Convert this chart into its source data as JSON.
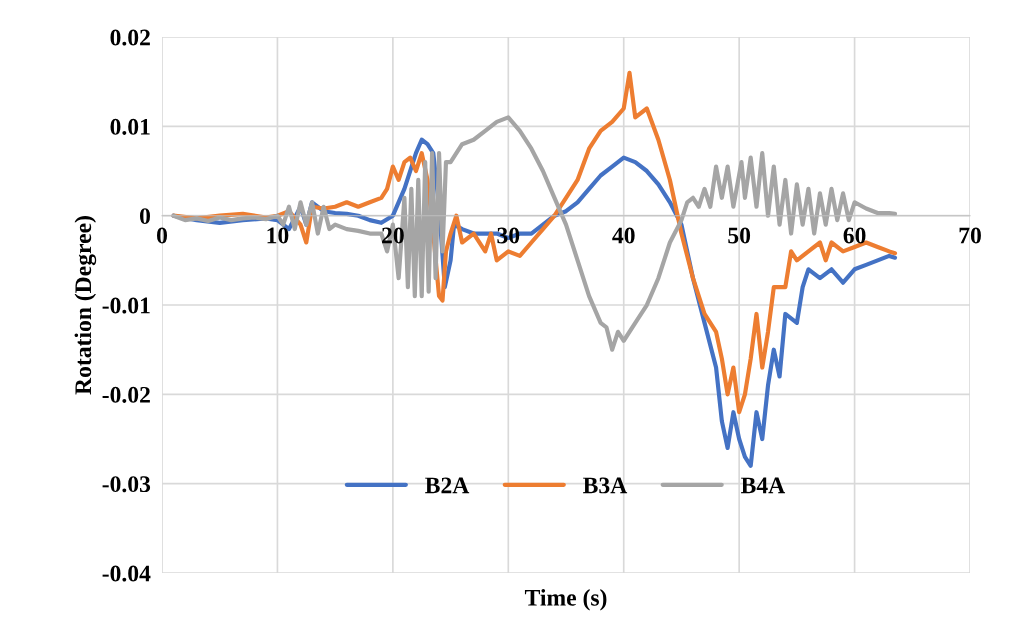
{
  "chart_data": {
    "type": "line",
    "xlabel": "Time (s)",
    "ylabel": "Rotation (Degree)",
    "xlim": [
      0,
      70
    ],
    "xticks": [
      0,
      10,
      20,
      30,
      40,
      50,
      60,
      70
    ],
    "ylim": [
      -0.04,
      0.02
    ],
    "yticks": [
      -0.04,
      -0.03,
      -0.02,
      -0.01,
      0,
      0.01,
      0.02
    ],
    "grid": true,
    "legend": "bottom",
    "line_style": "solid",
    "marker": "none",
    "series": [
      {
        "name": "B2A",
        "color": "#4472c4",
        "x": [
          1,
          3,
          5,
          7,
          9,
          10,
          11,
          12,
          12.5,
          13,
          14,
          15,
          16,
          17,
          18,
          19,
          20,
          21,
          22,
          22.5,
          23,
          23.5,
          24,
          24.5,
          25,
          25.3,
          26,
          27,
          28,
          29,
          30,
          31,
          32,
          33,
          34,
          35,
          36,
          37,
          38,
          39,
          40,
          41,
          42,
          43,
          44,
          45,
          46,
          47,
          48,
          48.5,
          49,
          49.5,
          50,
          50.5,
          51,
          51.5,
          52,
          52.5,
          53,
          53.5,
          54,
          55,
          55.5,
          56,
          57,
          58,
          59,
          60,
          61,
          62,
          63,
          63.5
        ],
        "values": [
          0,
          -0.0005,
          -0.0008,
          -0.0005,
          -0.0003,
          -0.0005,
          -0.0015,
          0.001,
          -0.001,
          0.0015,
          0.0005,
          0.0003,
          0.0002,
          0,
          -0.0005,
          -0.0008,
          0,
          0.003,
          0.007,
          0.0085,
          0.008,
          0.007,
          0.001,
          -0.008,
          -0.005,
          -0.001,
          -0.0015,
          -0.002,
          -0.002,
          -0.002,
          -0.0025,
          -0.002,
          -0.002,
          -0.001,
          0,
          0.0005,
          0.0015,
          0.003,
          0.0045,
          0.0055,
          0.0065,
          0.006,
          0.005,
          0.0035,
          0.0015,
          -0.001,
          -0.007,
          -0.012,
          -0.017,
          -0.023,
          -0.026,
          -0.022,
          -0.025,
          -0.027,
          -0.028,
          -0.022,
          -0.025,
          -0.019,
          -0.015,
          -0.018,
          -0.011,
          -0.012,
          -0.008,
          -0.006,
          -0.007,
          -0.006,
          -0.0075,
          -0.006,
          -0.0055,
          -0.005,
          -0.0045,
          -0.0047
        ]
      },
      {
        "name": "B3A",
        "color": "#ed7d31",
        "x": [
          1,
          3,
          5,
          7,
          9,
          10,
          11,
          12,
          12.5,
          13,
          14,
          15,
          16,
          17,
          18,
          19,
          19.5,
          20,
          20.5,
          21,
          21.5,
          22,
          22.5,
          23,
          23.5,
          24,
          24.3,
          24.6,
          25,
          25.5,
          26,
          27,
          28,
          28.5,
          29,
          30,
          31,
          32,
          33,
          34,
          35,
          36,
          37,
          38,
          39,
          40,
          40.5,
          41,
          42,
          43,
          44,
          45,
          46,
          47,
          48,
          48.5,
          49,
          49.5,
          50,
          50.5,
          51,
          51.5,
          52,
          52.5,
          53,
          54,
          54.5,
          55,
          56,
          57,
          57.5,
          58,
          59,
          60,
          61,
          62,
          63,
          63.5
        ],
        "values": [
          0,
          -0.0003,
          0,
          0.0002,
          -0.0002,
          0,
          0.0005,
          -0.001,
          -0.003,
          0.001,
          0.0008,
          0.001,
          0.0015,
          0.001,
          0.0015,
          0.002,
          0.003,
          0.0055,
          0.004,
          0.006,
          0.0065,
          0.005,
          0.007,
          0.004,
          -0.002,
          -0.009,
          -0.0095,
          -0.004,
          -0.002,
          0,
          -0.003,
          -0.002,
          -0.004,
          -0.002,
          -0.005,
          -0.004,
          -0.0045,
          -0.003,
          -0.0015,
          0,
          0.002,
          0.004,
          0.0075,
          0.0095,
          0.0105,
          0.012,
          0.016,
          0.011,
          0.012,
          0.0085,
          0.004,
          -0.002,
          -0.007,
          -0.011,
          -0.013,
          -0.016,
          -0.02,
          -0.017,
          -0.022,
          -0.02,
          -0.016,
          -0.011,
          -0.017,
          -0.013,
          -0.008,
          -0.008,
          -0.004,
          -0.005,
          -0.004,
          -0.003,
          -0.005,
          -0.003,
          -0.004,
          -0.0035,
          -0.003,
          -0.0035,
          -0.004,
          -0.0042
        ]
      },
      {
        "name": "B4A",
        "color": "#a5a5a5",
        "x": [
          1,
          2,
          3,
          4,
          5,
          6,
          7,
          8,
          9,
          10,
          10.5,
          11,
          11.5,
          12,
          12.5,
          13,
          13.5,
          14,
          14.5,
          15,
          16,
          17,
          18,
          19,
          19.5,
          20,
          20.5,
          21,
          21.3,
          21.6,
          21.9,
          22.2,
          22.5,
          22.8,
          23.1,
          23.4,
          23.7,
          24,
          24.3,
          24.6,
          25,
          26,
          27,
          28,
          29,
          30,
          31,
          32,
          33,
          34,
          35,
          36,
          37,
          38,
          38.5,
          39,
          39.5,
          40,
          41,
          42,
          43,
          44,
          45,
          45.5,
          46,
          46.5,
          47,
          47.5,
          48,
          48.5,
          49,
          49.5,
          50.2,
          50.5,
          51,
          51.5,
          52,
          52.5,
          53,
          53.5,
          54,
          54.5,
          55,
          55.5,
          56,
          56.5,
          57,
          57.5,
          58,
          58.5,
          59,
          59.5,
          60,
          61,
          62,
          63,
          63.5
        ],
        "values": [
          0,
          -0.0005,
          -0.0003,
          -0.0006,
          -0.0002,
          -0.0005,
          -0.0003,
          -0.0002,
          -0.0004,
          0,
          -0.001,
          0.001,
          -0.0015,
          0.0015,
          -0.001,
          0.0015,
          -0.002,
          0.001,
          -0.0015,
          -0.001,
          -0.0015,
          -0.0017,
          -0.002,
          -0.002,
          -0.004,
          -0.001,
          -0.007,
          0.002,
          -0.008,
          0.003,
          -0.009,
          0.004,
          -0.009,
          0.006,
          -0.0085,
          0.007,
          -0.007,
          0.007,
          -0.004,
          0.006,
          0.006,
          0.008,
          0.0085,
          0.0095,
          0.0105,
          0.011,
          0.0095,
          0.0075,
          0.005,
          0.002,
          -0.001,
          -0.005,
          -0.009,
          -0.012,
          -0.0125,
          -0.015,
          -0.013,
          -0.014,
          -0.012,
          -0.01,
          -0.007,
          -0.003,
          -0.0005,
          0.0015,
          0.002,
          0.001,
          0.003,
          0.001,
          0.0055,
          0.002,
          0.0055,
          0.001,
          0.006,
          0.002,
          0.0065,
          0.001,
          0.007,
          0,
          0.0055,
          -0.001,
          0.004,
          -0.002,
          0.0035,
          -0.001,
          0.003,
          -0.002,
          0.0025,
          -0.001,
          0.003,
          -0.0005,
          0.0025,
          -0.0005,
          0.0015,
          0.0008,
          0.0003,
          0.0003,
          0.0002
        ]
      }
    ]
  }
}
